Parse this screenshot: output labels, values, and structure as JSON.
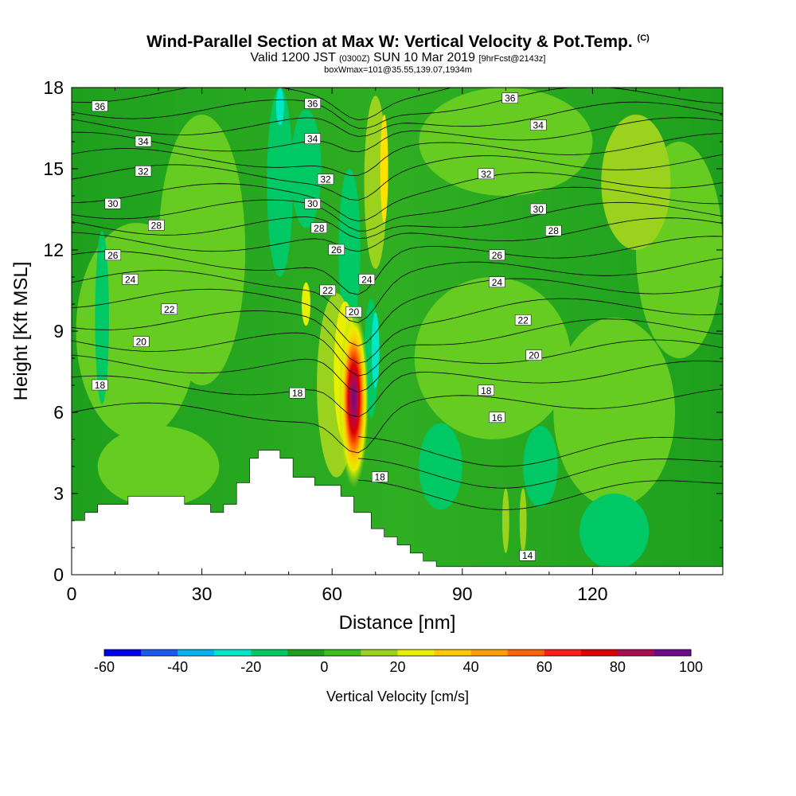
{
  "title": {
    "main": "Wind-Parallel Section at Max W: Vertical Velocity & Pot.Temp.",
    "copyright": "(C)",
    "valid_prefix": "Valid 1200 JST",
    "valid_utc": "(0300Z)",
    "valid_date": "SUN 10 Mar 2019",
    "forecast": "[9hrFcst@2143z]",
    "box_info": "boxWmax=101@35.55,139.07,1934m"
  },
  "chart_data": {
    "type": "heatmap",
    "xlabel": "Distance [nm]",
    "ylabel": "Height [Kft MSL]",
    "xlim": [
      0,
      150
    ],
    "ylim": [
      0,
      18
    ],
    "x_ticks": [
      0,
      30,
      60,
      90,
      120
    ],
    "y_ticks": [
      0,
      3,
      6,
      9,
      12,
      15,
      18
    ],
    "colorbar": {
      "label": "Vertical Velocity [cm/s]",
      "min": -60,
      "max": 100,
      "ticks": [
        -60,
        -40,
        -20,
        0,
        20,
        40,
        60,
        80,
        100
      ],
      "colors": [
        "#0000ee",
        "#1e5af0",
        "#00b4f0",
        "#00e6c8",
        "#00c864",
        "#1ea01e",
        "#3cbe1e",
        "#9bd21e",
        "#e6f000",
        "#ffc800",
        "#ffa000",
        "#ff6400",
        "#ff1e1e",
        "#dc0000",
        "#aa0a50",
        "#6e0a8c"
      ]
    },
    "terrain": {
      "x": [
        0,
        3,
        3,
        6,
        6,
        13,
        13,
        26,
        26,
        32,
        32,
        35,
        35,
        38,
        38,
        41,
        41,
        43,
        43,
        48,
        48,
        51,
        51,
        56,
        56,
        62,
        62,
        65,
        65,
        69,
        69,
        72,
        72,
        75,
        75,
        78,
        78,
        81,
        81,
        84,
        84,
        150
      ],
      "z": [
        2.0,
        2.0,
        2.3,
        2.3,
        2.6,
        2.6,
        2.9,
        2.9,
        2.6,
        2.6,
        2.3,
        2.3,
        2.6,
        2.6,
        3.4,
        3.4,
        4.3,
        4.3,
        4.6,
        4.6,
        4.3,
        4.3,
        3.6,
        3.6,
        3.3,
        3.3,
        2.9,
        2.9,
        2.3,
        2.3,
        1.7,
        1.7,
        1.4,
        1.4,
        1.1,
        1.1,
        0.8,
        0.8,
        0.5,
        0.5,
        0.3,
        0.3
      ]
    },
    "updraft_core": {
      "x": 65,
      "z": 6.5,
      "max_w": 101
    },
    "isentropes": {
      "units": "Pot.Temp. contours",
      "labels": [
        {
          "text": "36",
          "x": 6.5,
          "z": 17.3
        },
        {
          "text": "34",
          "x": 16.5,
          "z": 16.0
        },
        {
          "text": "32",
          "x": 16.5,
          "z": 14.9
        },
        {
          "text": "30",
          "x": 9.5,
          "z": 13.7
        },
        {
          "text": "28",
          "x": 19.5,
          "z": 12.9
        },
        {
          "text": "26",
          "x": 9.5,
          "z": 11.8
        },
        {
          "text": "24",
          "x": 13.5,
          "z": 10.9
        },
        {
          "text": "22",
          "x": 22.5,
          "z": 9.8
        },
        {
          "text": "20",
          "x": 16.0,
          "z": 8.6
        },
        {
          "text": "18",
          "x": 6.5,
          "z": 7.0
        },
        {
          "text": "36",
          "x": 55.5,
          "z": 17.4
        },
        {
          "text": "34",
          "x": 55.5,
          "z": 16.1
        },
        {
          "text": "32",
          "x": 58.5,
          "z": 14.6
        },
        {
          "text": "30",
          "x": 55.5,
          "z": 13.7
        },
        {
          "text": "28",
          "x": 57.0,
          "z": 12.8
        },
        {
          "text": "26",
          "x": 61.0,
          "z": 12.0
        },
        {
          "text": "24",
          "x": 68.0,
          "z": 10.9
        },
        {
          "text": "22",
          "x": 59.0,
          "z": 10.5
        },
        {
          "text": "20",
          "x": 65.0,
          "z": 9.7
        },
        {
          "text": "18",
          "x": 52.0,
          "z": 6.7
        },
        {
          "text": "18",
          "x": 71.0,
          "z": 3.6
        },
        {
          "text": "36",
          "x": 101.0,
          "z": 17.6
        },
        {
          "text": "34",
          "x": 107.5,
          "z": 16.6
        },
        {
          "text": "32",
          "x": 95.5,
          "z": 14.8
        },
        {
          "text": "30",
          "x": 107.5,
          "z": 13.5
        },
        {
          "text": "28",
          "x": 111.0,
          "z": 12.7
        },
        {
          "text": "26",
          "x": 98.0,
          "z": 11.8
        },
        {
          "text": "24",
          "x": 98.0,
          "z": 10.8
        },
        {
          "text": "22",
          "x": 104.0,
          "z": 9.4
        },
        {
          "text": "20",
          "x": 106.5,
          "z": 8.1
        },
        {
          "text": "18",
          "x": 95.5,
          "z": 6.8
        },
        {
          "text": "16",
          "x": 98.0,
          "z": 5.8
        },
        {
          "text": "14",
          "x": 105.0,
          "z": 0.7
        }
      ]
    }
  }
}
